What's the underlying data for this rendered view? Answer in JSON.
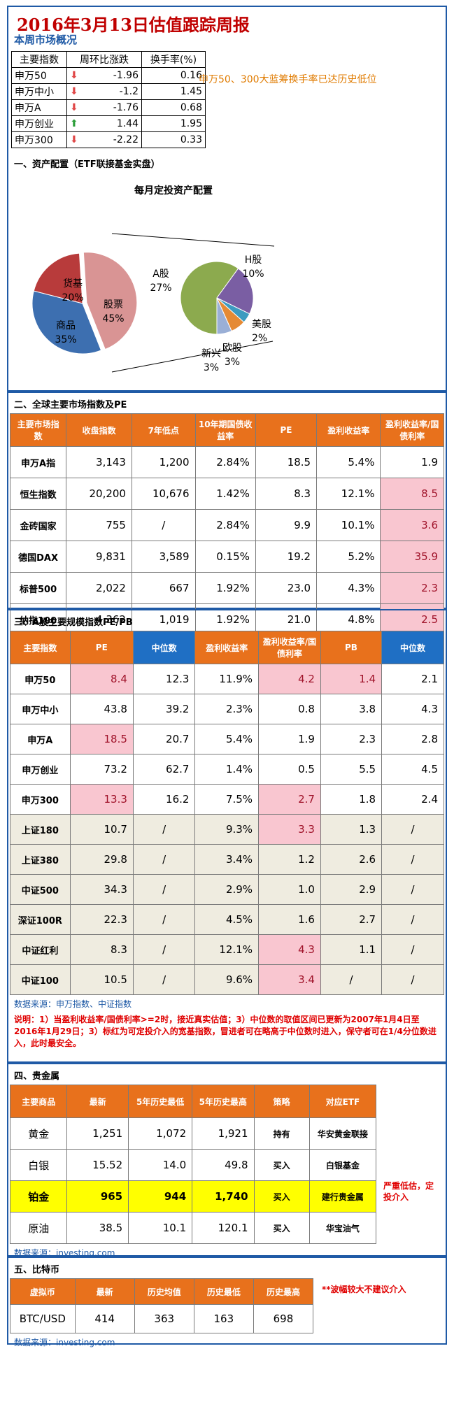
{
  "header": {
    "title": "2016年3月13日估值跟踪周报",
    "subtitle": "本周市场概况"
  },
  "market_overview": {
    "columns": [
      "主要指数",
      "周环比涨跌",
      "换手率(%)"
    ],
    "rows": [
      {
        "name": "申万50",
        "dir": "down",
        "change": "-1.96",
        "turnover": "0.16"
      },
      {
        "name": "申万中小",
        "dir": "down",
        "change": "-1.2",
        "turnover": "1.45"
      },
      {
        "name": "申万A",
        "dir": "down",
        "change": "-1.76",
        "turnover": "0.68"
      },
      {
        "name": "申万创业",
        "dir": "up",
        "change": "1.44",
        "turnover": "1.95"
      },
      {
        "name": "申万300",
        "dir": "down",
        "change": "-2.22",
        "turnover": "0.33"
      }
    ],
    "note": "申万50、300大蓝筹换手率已达历史低位",
    "colors": {
      "down": "#e04848",
      "up": "#2d9e3a"
    }
  },
  "section1": {
    "title": "一、资产配置（ETF联接基金实盘）"
  },
  "chart_data": [
    {
      "type": "pie",
      "title": "每月定投资产配置",
      "categories": [
        "货基",
        "股票",
        "商品"
      ],
      "values": [
        20,
        45,
        35
      ],
      "value_labels": [
        "20%",
        "45%",
        "35%"
      ],
      "colors": [
        "#b83b3b",
        "#d99494",
        "#3d6fb0"
      ]
    },
    {
      "type": "pie",
      "title": "",
      "categories": [
        "A股",
        "H股",
        "美股",
        "欧股",
        "新兴"
      ],
      "values": [
        27,
        10,
        2,
        3,
        3
      ],
      "value_labels": [
        "27%",
        "10%",
        "2%",
        "3%",
        "3%"
      ],
      "colors": [
        "#8caa4e",
        "#7a5ea3",
        "#3d9bc0",
        "#e58a34",
        "#9aafd6"
      ]
    }
  ],
  "section2": {
    "title": "二、全球主要市场指数及PE",
    "columns": [
      "主要市场指数",
      "收盘指数",
      "7年低点",
      "10年期国债收益率",
      "PE",
      "盈利收益率",
      "盈利收益率/国债利率"
    ],
    "rows": [
      {
        "name": "申万A指",
        "close": "3,143",
        "low7": "1,200",
        "bond": "2.84%",
        "pe": "18.5",
        "ey": "5.4%",
        "ratio": "1.9",
        "hl": false
      },
      {
        "name": "恒生指数",
        "close": "20,200",
        "low7": "10,676",
        "bond": "1.42%",
        "pe": "8.3",
        "ey": "12.1%",
        "ratio": "8.5",
        "hl": true
      },
      {
        "name": "金砖国家",
        "close": "755",
        "low7": "/",
        "bond": "2.84%",
        "pe": "9.9",
        "ey": "10.1%",
        "ratio": "3.6",
        "hl": true
      },
      {
        "name": "德国DAX",
        "close": "9,831",
        "low7": "3,589",
        "bond": "0.15%",
        "pe": "19.2",
        "ey": "5.2%",
        "ratio": "35.9",
        "hl": true
      },
      {
        "name": "标普500",
        "close": "2,022",
        "low7": "667",
        "bond": "1.92%",
        "pe": "23.0",
        "ey": "4.3%",
        "ratio": "2.3",
        "hl": true
      },
      {
        "name": "纳指100",
        "close": "4,362",
        "low7": "1,019",
        "bond": "1.92%",
        "pe": "21.0",
        "ey": "4.8%",
        "ratio": "2.5",
        "hl": true
      }
    ]
  },
  "section3": {
    "title": "三、A股主要规模指数PE/PB",
    "columns": [
      "主要指数",
      "PE",
      "中位数",
      "盈利收益率",
      "盈利收益率/国债利率",
      "PB",
      "中位数"
    ],
    "rows": [
      {
        "name": "申万50",
        "pe": "8.4",
        "pe_med": "12.3",
        "ey": "11.9%",
        "ratio": "4.2",
        "pb": "1.4",
        "pb_med": "2.1",
        "pe_hl": true,
        "ratio_hl": true,
        "pb_hl": true,
        "beige": false
      },
      {
        "name": "申万中小",
        "pe": "43.8",
        "pe_med": "39.2",
        "ey": "2.3%",
        "ratio": "0.8",
        "pb": "3.8",
        "pb_med": "4.3",
        "pe_hl": false,
        "ratio_hl": false,
        "pb_hl": false,
        "beige": false
      },
      {
        "name": "申万A",
        "pe": "18.5",
        "pe_med": "20.7",
        "ey": "5.4%",
        "ratio": "1.9",
        "pb": "2.3",
        "pb_med": "2.8",
        "pe_hl": true,
        "ratio_hl": false,
        "pb_hl": false,
        "beige": false
      },
      {
        "name": "申万创业",
        "pe": "73.2",
        "pe_med": "62.7",
        "ey": "1.4%",
        "ratio": "0.5",
        "pb": "5.5",
        "pb_med": "4.5",
        "pe_hl": false,
        "ratio_hl": false,
        "pb_hl": false,
        "beige": false
      },
      {
        "name": "申万300",
        "pe": "13.3",
        "pe_med": "16.2",
        "ey": "7.5%",
        "ratio": "2.7",
        "pb": "1.8",
        "pb_med": "2.4",
        "pe_hl": true,
        "ratio_hl": true,
        "pb_hl": false,
        "beige": false
      },
      {
        "name": "上证180",
        "pe": "10.7",
        "pe_med": "/",
        "ey": "9.3%",
        "ratio": "3.3",
        "pb": "1.3",
        "pb_med": "/",
        "pe_hl": false,
        "ratio_hl": true,
        "pb_hl": false,
        "beige": true
      },
      {
        "name": "上证380",
        "pe": "29.8",
        "pe_med": "/",
        "ey": "3.4%",
        "ratio": "1.2",
        "pb": "2.6",
        "pb_med": "/",
        "pe_hl": false,
        "ratio_hl": false,
        "pb_hl": false,
        "beige": true
      },
      {
        "name": "中证500",
        "pe": "34.3",
        "pe_med": "/",
        "ey": "2.9%",
        "ratio": "1.0",
        "pb": "2.9",
        "pb_med": "/",
        "pe_hl": false,
        "ratio_hl": false,
        "pb_hl": false,
        "beige": true
      },
      {
        "name": "深证100R",
        "pe": "22.3",
        "pe_med": "/",
        "ey": "4.5%",
        "ratio": "1.6",
        "pb": "2.7",
        "pb_med": "/",
        "pe_hl": false,
        "ratio_hl": false,
        "pb_hl": false,
        "beige": true
      },
      {
        "name": "中证红利",
        "pe": "8.3",
        "pe_med": "/",
        "ey": "12.1%",
        "ratio": "4.3",
        "pb": "1.1",
        "pb_med": "/",
        "pe_hl": false,
        "ratio_hl": true,
        "pb_hl": false,
        "beige": true
      },
      {
        "name": "中证100",
        "pe": "10.5",
        "pe_med": "/",
        "ey": "9.6%",
        "ratio": "3.4",
        "pb": "/",
        "pb_med": "/",
        "pe_hl": false,
        "ratio_hl": true,
        "pb_hl": false,
        "beige": true
      }
    ],
    "source": "数据来源：申万指数、中证指数",
    "note": "说明：1）当盈利收益率/国债利率>=2时，接近真实估值；3）中位数的取值区间已更新为2007年1月4日至2016年1月29日；3）标红为可定投介入的宽基指数，冒进者可在略高于中位数时进入，保守者可在1/4分位数进入，此时最安全。"
  },
  "section4": {
    "title": "四、贵金属",
    "columns": [
      "主要商品",
      "最新",
      "5年历史最低",
      "5年历史最高",
      "策略",
      "对应ETF"
    ],
    "rows": [
      {
        "name": "黄金",
        "latest": "1,251",
        "low": "1,072",
        "high": "1,921",
        "strategy": "持有",
        "etf": "华安黄金联接",
        "hl": false
      },
      {
        "name": "白银",
        "latest": "15.52",
        "low": "14.0",
        "high": "49.8",
        "strategy": "买入",
        "etf": "白银基金",
        "hl": false
      },
      {
        "name": "铂金",
        "latest": "965",
        "low": "944",
        "high": "1,740",
        "strategy": "买入",
        "etf": "建行贵金属",
        "hl": true
      },
      {
        "name": "原油",
        "latest": "38.5",
        "low": "10.1",
        "high": "120.1",
        "strategy": "买入",
        "etf": "华宝油气",
        "hl": false
      }
    ],
    "side_note": "严重低估，定投介入",
    "source": "数据来源：investing.com"
  },
  "section5": {
    "title": "五、比特币",
    "columns": [
      "虚拟币",
      "最新",
      "历史均值",
      "历史最低",
      "历史最高"
    ],
    "rows": [
      {
        "name": "BTC/USD",
        "latest": "414",
        "avg": "363",
        "low": "163",
        "high": "698"
      }
    ],
    "side_note": "**波幅较大不建议介入",
    "source": "数据来源：investing.com"
  }
}
